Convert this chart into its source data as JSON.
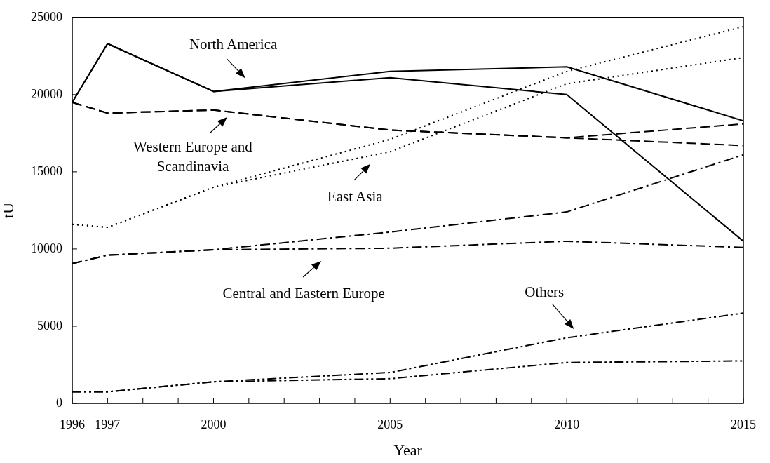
{
  "chart_data": {
    "type": "line",
    "xlabel": "Year",
    "ylabel": "tU",
    "x": [
      1996,
      1997,
      2000,
      2005,
      2010,
      2015
    ],
    "xlim": [
      1996,
      2015
    ],
    "xticks": [
      1996,
      1997,
      {
        "value": 1998,
        "label": null
      },
      {
        "value": 1999,
        "label": null
      },
      2000,
      {
        "value": 2001,
        "label": null
      },
      {
        "value": 2002,
        "label": null
      },
      {
        "value": 2003,
        "label": null
      },
      {
        "value": 2004,
        "label": null
      },
      2005,
      {
        "value": 2006,
        "label": null
      },
      {
        "value": 2007,
        "label": null
      },
      {
        "value": 2008,
        "label": null
      },
      {
        "value": 2009,
        "label": null
      },
      2010,
      {
        "value": 2011,
        "label": null
      },
      {
        "value": 2012,
        "label": null
      },
      {
        "value": 2013,
        "label": null
      },
      {
        "value": 2014,
        "label": null
      },
      2015
    ],
    "ylim": [
      0,
      25000
    ],
    "yticks": [
      0,
      5000,
      10000,
      15000,
      20000,
      25000
    ],
    "marker": "none",
    "series": [
      {
        "color": "#000000",
        "line_style": "solid",
        "values": [
          19500,
          23300,
          20200,
          21500,
          21800,
          18300
        ]
      },
      {
        "color": "#000000",
        "line_style": "solid",
        "values": [
          19500,
          23300,
          20200,
          21100,
          20000,
          10500
        ]
      },
      {
        "color": "#000000",
        "line_style": "dashed",
        "values": [
          19500,
          18800,
          19000,
          17700,
          17200,
          18100
        ]
      },
      {
        "color": "#000000",
        "line_style": "dashed",
        "values": [
          19500,
          18800,
          19000,
          17700,
          17200,
          16700
        ]
      },
      {
        "color": "#000000",
        "line_style": "dotted",
        "values": [
          11600,
          11400,
          14000,
          17100,
          21500,
          24400
        ]
      },
      {
        "color": "#000000",
        "line_style": "dotted",
        "values": [
          11600,
          11400,
          14000,
          16300,
          20700,
          22400
        ]
      },
      {
        "color": "#000000",
        "line_style": "dashdot",
        "values": [
          9050,
          9600,
          9950,
          11100,
          12400,
          16100
        ]
      },
      {
        "color": "#000000",
        "line_style": "dashdot",
        "values": [
          9050,
          9600,
          9950,
          10050,
          10500,
          10100
        ]
      },
      {
        "color": "#000000",
        "line_style": "dashdotdot",
        "values": [
          750,
          750,
          1400,
          2000,
          4250,
          5850
        ]
      },
      {
        "color": "#000000",
        "line_style": "dashdotdot",
        "values": [
          750,
          750,
          1400,
          1600,
          2650,
          2750
        ]
      }
    ],
    "annotations": [
      "North America",
      "Western Europe and Scandinavia",
      "East Asia",
      "Central and Eastern Europe",
      "Others"
    ]
  }
}
